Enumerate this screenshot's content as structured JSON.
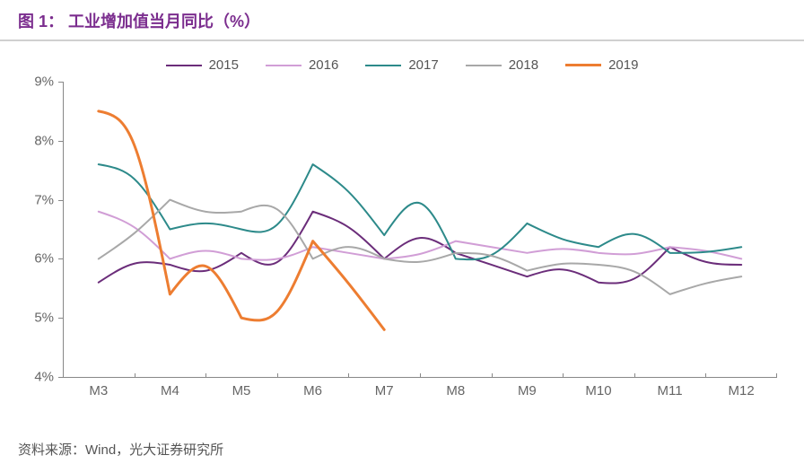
{
  "title": "图 1：  工业增加值当月同比（%）",
  "title_color": "#7b2d8e",
  "title_fontsize": 18,
  "source": "资料来源：Wind，光大证券研究所",
  "chart": {
    "type": "line",
    "background_color": "#ffffff",
    "axis_color": "#888888",
    "label_color": "#666666",
    "label_fontsize": 15,
    "x_categories": [
      "M3",
      "M4",
      "M5",
      "M6",
      "M7",
      "M8",
      "M9",
      "M10",
      "M11",
      "M12"
    ],
    "y_min": 4,
    "y_max": 9,
    "y_step": 1,
    "y_format": "%",
    "legend_position": "top-center",
    "series": [
      {
        "name": "2015",
        "color": "#6b2d7a",
        "width": 2,
        "values": [
          5.6,
          5.9,
          6.1,
          6.8,
          6.0,
          6.1,
          5.7,
          5.6,
          6.2,
          5.9
        ],
        "control": [
          6.0,
          5.7,
          5.7,
          6.6,
          6.5,
          5.9,
          5.9,
          5.55,
          5.9,
          6.15
        ]
      },
      {
        "name": "2016",
        "color": "#d19ed6",
        "width": 2,
        "values": [
          6.8,
          6.0,
          6.0,
          6.2,
          6.0,
          6.3,
          6.1,
          6.1,
          6.2,
          6.0
        ],
        "control": [
          6.6,
          6.2,
          5.95,
          6.1,
          6.05,
          6.2,
          6.2,
          6.05,
          6.15,
          6.15
        ]
      },
      {
        "name": "2017",
        "color": "#2d8a8a",
        "width": 2,
        "values": [
          7.6,
          6.5,
          6.5,
          7.6,
          6.4,
          6.0,
          6.6,
          6.2,
          6.1,
          6.2
        ],
        "control": [
          7.5,
          6.65,
          6.35,
          7.2,
          7.3,
          5.95,
          6.3,
          6.55,
          6.1,
          6.15
        ]
      },
      {
        "name": "2018",
        "color": "#a8a8a8",
        "width": 2,
        "values": [
          6.0,
          7.0,
          6.8,
          6.0,
          6.0,
          6.1,
          5.8,
          5.9,
          5.4,
          5.7
        ],
        "control": [
          6.4,
          6.75,
          7.05,
          6.3,
          5.9,
          6.1,
          5.95,
          5.85,
          5.6,
          5.5
        ]
      },
      {
        "name": "2019",
        "color": "#ed7d31",
        "width": 3,
        "values": [
          8.5,
          5.4,
          5.0,
          6.3,
          4.8
        ],
        "control": [
          8.4,
          6.2,
          4.85,
          5.6,
          6.0
        ]
      }
    ]
  }
}
